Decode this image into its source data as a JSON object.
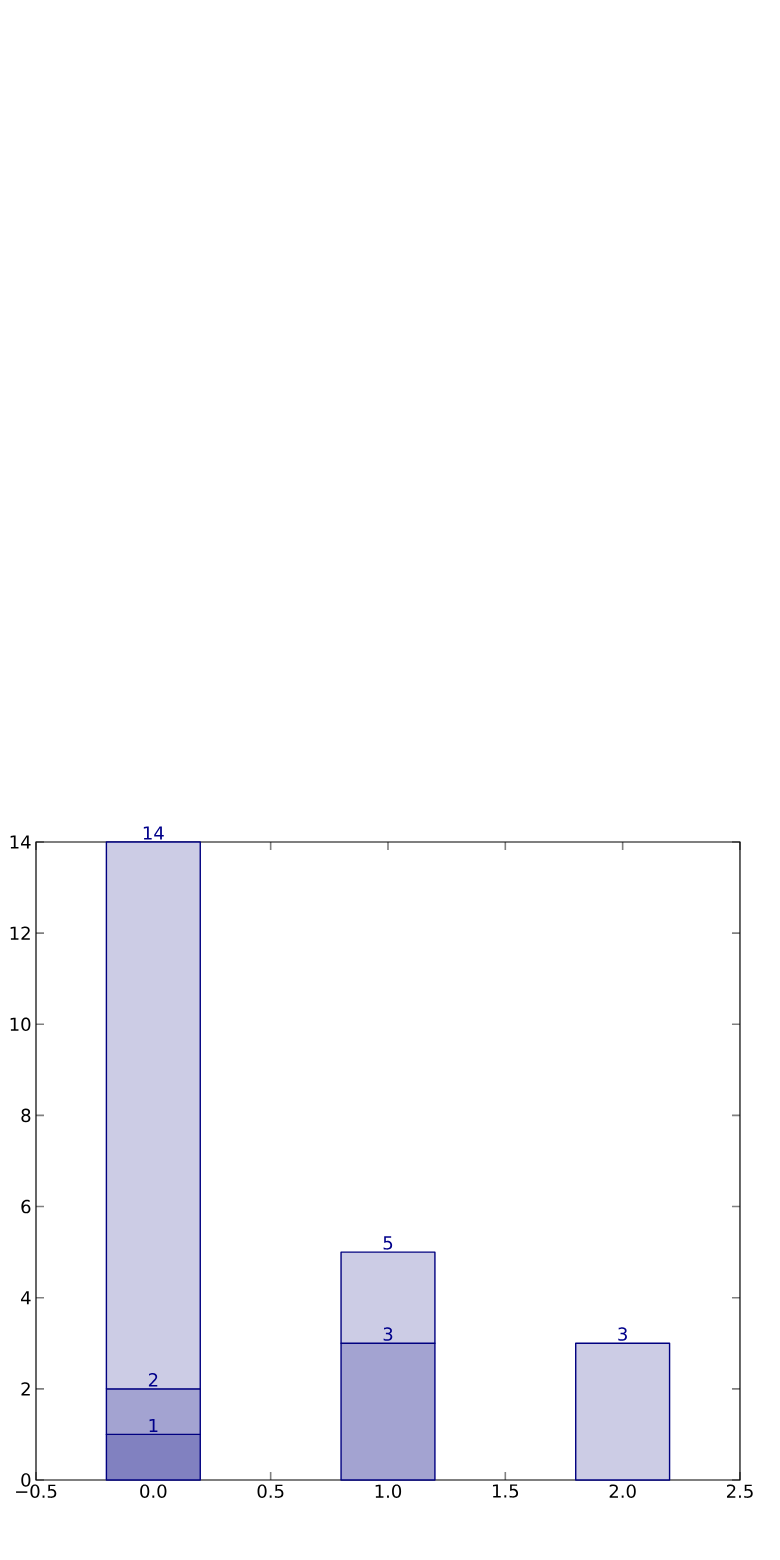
{
  "chart_data": {
    "type": "bar",
    "stacked": true,
    "x": [
      0,
      1,
      2
    ],
    "series": [
      {
        "color": "#8181c0",
        "values": [
          1,
          null,
          null
        ]
      },
      {
        "color": "#a3a3d1",
        "values": [
          1,
          3,
          null
        ]
      },
      {
        "color": "#cccce5",
        "values": [
          12,
          2,
          3
        ]
      }
    ],
    "annotations": [
      {
        "text": "1",
        "x": 0,
        "y": 1
      },
      {
        "text": "2",
        "x": 0,
        "y": 2
      },
      {
        "text": "14",
        "x": 0,
        "y": 14
      },
      {
        "text": "3",
        "x": 1,
        "y": 3
      },
      {
        "text": "5",
        "x": 1,
        "y": 5
      },
      {
        "text": "3",
        "x": 2,
        "y": 3
      }
    ],
    "xlim": [
      -0.5,
      2.5
    ],
    "xticks": [
      {
        "value": -0.5,
        "label": "−0.5"
      },
      {
        "value": 0,
        "label": "0.0"
      },
      {
        "value": 0.5,
        "label": "0.5"
      },
      {
        "value": 1,
        "label": "1.0"
      },
      {
        "value": 1.5,
        "label": "1.5"
      },
      {
        "value": 2,
        "label": "2.0"
      },
      {
        "value": 2.5,
        "label": "2.5"
      }
    ],
    "ylim": [
      0,
      14
    ],
    "yticks": [
      0,
      2,
      4,
      6,
      8,
      10,
      12,
      14
    ]
  }
}
